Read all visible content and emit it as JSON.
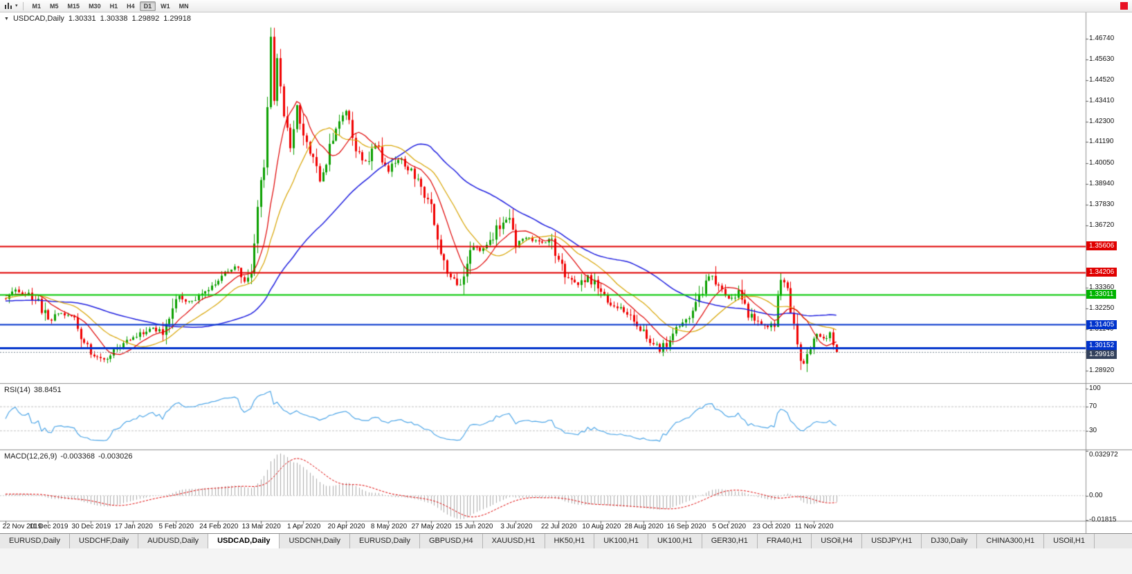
{
  "toolbar": {
    "timeframes": [
      {
        "label": "M1",
        "active": false
      },
      {
        "label": "M5",
        "active": false
      },
      {
        "label": "M15",
        "active": false
      },
      {
        "label": "M30",
        "active": false
      },
      {
        "label": "H1",
        "active": false
      },
      {
        "label": "H4",
        "active": false
      },
      {
        "label": "D1",
        "active": true
      },
      {
        "label": "W1",
        "active": false
      },
      {
        "label": "MN",
        "active": false
      }
    ],
    "status_color": "#e81123"
  },
  "chart": {
    "title": {
      "symbol": "USDCAD,Daily",
      "open": "1.30331",
      "high": "1.30338",
      "low": "1.29892",
      "close": "1.29918"
    },
    "price_axis": {
      "ticks": [
        {
          "label": "1.46740",
          "value": 1.4674
        },
        {
          "label": "1.45630",
          "value": 1.4563
        },
        {
          "label": "1.44520",
          "value": 1.4452
        },
        {
          "label": "1.43410",
          "value": 1.4341
        },
        {
          "label": "1.42300",
          "value": 1.423
        },
        {
          "label": "1.41190",
          "value": 1.4119
        },
        {
          "label": "1.40050",
          "value": 1.4005
        },
        {
          "label": "1.38940",
          "value": 1.3894
        },
        {
          "label": "1.37830",
          "value": 1.3783
        },
        {
          "label": "1.36720",
          "value": 1.3672
        },
        {
          "label": "1.33360",
          "value": 1.3336
        },
        {
          "label": "1.32250",
          "value": 1.3225
        },
        {
          "label": "1.31140",
          "value": 1.3114
        },
        {
          "label": "1.28920",
          "value": 1.2892
        }
      ],
      "badges": [
        {
          "label": "1.35606",
          "value": 1.35606,
          "color": "#e00000"
        },
        {
          "label": "1.34206",
          "value": 1.34206,
          "color": "#e00000"
        },
        {
          "label": "1.33011",
          "value": 1.33011,
          "color": "#00b400"
        },
        {
          "label": "1.31405",
          "value": 1.31405,
          "color": "#0033cc"
        },
        {
          "label": "1.30152",
          "value": 1.30152,
          "color": "#0033cc"
        },
        {
          "label": "1.29918",
          "value": 1.29918,
          "color": "#33415c"
        }
      ]
    },
    "hlines": [
      {
        "value": 1.35606,
        "color": "#e00000",
        "width": 2
      },
      {
        "value": 1.34206,
        "color": "#e00000",
        "width": 2
      },
      {
        "value": 1.33011,
        "color": "#00c800",
        "width": 2
      },
      {
        "value": 1.31405,
        "color": "#0033cc",
        "width": 2
      },
      {
        "value": 1.30152,
        "color": "#0033cc",
        "width": 3
      },
      {
        "value": 1.29918,
        "color": "#7a8896",
        "width": 1,
        "dash": [
          2,
          2
        ]
      }
    ],
    "date_axis": {
      "bar_step": 13,
      "labels": [
        "22 Nov 2019",
        "11 Dec 2019",
        "30 Dec 2019",
        "17 Jan 2020",
        "5 Feb 2020",
        "24 Feb 2020",
        "13 Mar 2020",
        "1 Apr 2020",
        "20 Apr 2020",
        "8 May 2020",
        "27 May 2020",
        "15 Jun 2020",
        "3 Jul 2020",
        "22 Jul 2020",
        "10 Aug 2020",
        "28 Aug 2020",
        "16 Sep 2020",
        "5 Oct 2020",
        "23 Oct 2020",
        "11 Nov 2020"
      ]
    }
  },
  "rsi": {
    "name": "RSI(14)",
    "value": "38.8451",
    "line_color": "#4da6e8",
    "levels": [
      {
        "label": "100",
        "value": 100
      },
      {
        "label": "70",
        "value": 70
      },
      {
        "label": "30",
        "value": 30
      }
    ]
  },
  "macd": {
    "name": "MACD(12,26,9)",
    "value_main": "-0.003368",
    "value_signal": "-0.003026",
    "histogram_color": "#aaaaaa",
    "signal_color": "#e00000",
    "axis": [
      {
        "label": "0.032972",
        "value": 0.032972
      },
      {
        "label": "0.00",
        "value": 0
      },
      {
        "label": "-0.01815",
        "value": -0.01815
      }
    ]
  },
  "tabs": [
    {
      "label": "EURUSD,Daily",
      "active": false
    },
    {
      "label": "USDCHF,Daily",
      "active": false
    },
    {
      "label": "AUDUSD,Daily",
      "active": false
    },
    {
      "label": "USDCAD,Daily",
      "active": true
    },
    {
      "label": "USDCNH,Daily",
      "active": false
    },
    {
      "label": "EURUSD,Daily",
      "active": false
    },
    {
      "label": "GBPUSD,H4",
      "active": false
    },
    {
      "label": "XAUUSD,H1",
      "active": false
    },
    {
      "label": "HK50,H1",
      "active": false
    },
    {
      "label": "UK100,H1",
      "active": false
    },
    {
      "label": "UK100,H1",
      "active": false
    },
    {
      "label": "GER30,H1",
      "active": false
    },
    {
      "label": "FRA40,H1",
      "active": false
    },
    {
      "label": "USOil,H4",
      "active": false
    },
    {
      "label": "USDJPY,H1",
      "active": false
    },
    {
      "label": "DJ30,Daily",
      "active": false
    },
    {
      "label": "CHINA300,H1",
      "active": false
    },
    {
      "label": "USOil,H1",
      "active": false
    }
  ],
  "chart_data": {
    "type": "candlestick",
    "symbol": "USDCAD",
    "timeframe": "Daily",
    "last_ohlc": {
      "open": 1.30331,
      "high": 1.30338,
      "low": 1.29892,
      "close": 1.29918
    },
    "current_price": 1.29918,
    "bars_visible": 255,
    "y_range": [
      1.2829,
      1.4815
    ],
    "horizontal_levels": [
      1.35606,
      1.34206,
      1.33011,
      1.31405,
      1.30152
    ],
    "candle_up_color": "#0ca000",
    "candle_down_color": "#f00000",
    "moving_averages": [
      {
        "speed": "fast",
        "color": "#e00000"
      },
      {
        "speed": "medium",
        "color": "#d8a400"
      },
      {
        "speed": "slow",
        "color": "#2020e0"
      }
    ],
    "indicators": [
      {
        "name": "RSI",
        "length": 14,
        "current": 38.8451,
        "levels": [
          30,
          70
        ]
      },
      {
        "name": "MACD",
        "fast": 12,
        "slow": 26,
        "signal": 9,
        "current_main": -0.003368,
        "current_signal": -0.003026,
        "axis_max": 0.032972,
        "axis_min": -0.01815
      }
    ],
    "x_axis_dates": [
      "22 Nov 2019",
      "11 Dec 2019",
      "30 Dec 2019",
      "17 Jan 2020",
      "5 Feb 2020",
      "24 Feb 2020",
      "13 Mar 2020",
      "1 Apr 2020",
      "20 Apr 2020",
      "8 May 2020",
      "27 May 2020",
      "15 Jun 2020",
      "3 Jul 2020",
      "22 Jul 2020",
      "10 Aug 2020",
      "28 Aug 2020",
      "16 Sep 2020",
      "5 Oct 2020",
      "23 Oct 2020",
      "11 Nov 2020"
    ],
    "price_path": [
      [
        -60,
        1.3235
      ],
      [
        -45,
        1.329
      ],
      [
        -30,
        1.3225
      ],
      [
        -15,
        1.327
      ],
      [
        -5,
        1.3305
      ],
      [
        0,
        1.3285
      ],
      [
        3,
        1.332
      ],
      [
        7,
        1.33
      ],
      [
        10,
        1.3255
      ],
      [
        13,
        1.3165
      ],
      [
        17,
        1.32
      ],
      [
        21,
        1.3165
      ],
      [
        26,
        1.2985
      ],
      [
        30,
        1.2958
      ],
      [
        34,
        1.301
      ],
      [
        39,
        1.3065
      ],
      [
        44,
        1.312
      ],
      [
        48,
        1.3105
      ],
      [
        52,
        1.329
      ],
      [
        56,
        1.326
      ],
      [
        60,
        1.33
      ],
      [
        64,
        1.336
      ],
      [
        68,
        1.343
      ],
      [
        70,
        1.3445
      ],
      [
        73,
        1.3365
      ],
      [
        75,
        1.342
      ],
      [
        76,
        1.36
      ],
      [
        78,
        1.39
      ],
      [
        79,
        1.4
      ],
      [
        80,
        1.428
      ],
      [
        81,
        1.466
      ],
      [
        82,
        1.435
      ],
      [
        83,
        1.456
      ],
      [
        85,
        1.428
      ],
      [
        87,
        1.409
      ],
      [
        89,
        1.433
      ],
      [
        91,
        1.4135
      ],
      [
        94,
        1.403
      ],
      [
        96,
        1.39
      ],
      [
        99,
        1.408
      ],
      [
        102,
        1.424
      ],
      [
        104,
        1.4265
      ],
      [
        107,
        1.409
      ],
      [
        110,
        1.401
      ],
      [
        113,
        1.411
      ],
      [
        117,
        1.396
      ],
      [
        120,
        1.403
      ],
      [
        123,
        1.398
      ],
      [
        126,
        1.39
      ],
      [
        130,
        1.377
      ],
      [
        133,
        1.35
      ],
      [
        136,
        1.3395
      ],
      [
        139,
        1.334
      ],
      [
        141,
        1.347
      ],
      [
        143,
        1.356
      ],
      [
        146,
        1.354
      ],
      [
        149,
        1.362
      ],
      [
        152,
        1.37
      ],
      [
        154,
        1.3715
      ],
      [
        156,
        1.358
      ],
      [
        160,
        1.3605
      ],
      [
        164,
        1.3575
      ],
      [
        166,
        1.3615
      ],
      [
        169,
        1.3475
      ],
      [
        172,
        1.3385
      ],
      [
        175,
        1.3345
      ],
      [
        178,
        1.3405
      ],
      [
        182,
        1.3305
      ],
      [
        185,
        1.3255
      ],
      [
        188,
        1.323
      ],
      [
        191,
        1.3185
      ],
      [
        195,
        1.3095
      ],
      [
        198,
        1.304
      ],
      [
        200,
        1.2998
      ],
      [
        203,
        1.306
      ],
      [
        206,
        1.313
      ],
      [
        208,
        1.317
      ],
      [
        211,
        1.323
      ],
      [
        214,
        1.3385
      ],
      [
        216,
        1.34
      ],
      [
        218,
        1.333
      ],
      [
        221,
        1.3275
      ],
      [
        224,
        1.331
      ],
      [
        227,
        1.32
      ],
      [
        230,
        1.3145
      ],
      [
        233,
        1.3125
      ],
      [
        235,
        1.315
      ],
      [
        237,
        1.339
      ],
      [
        239,
        1.333
      ],
      [
        241,
        1.312
      ],
      [
        243,
        1.296
      ],
      [
        244,
        1.293
      ],
      [
        246,
        1.304
      ],
      [
        248,
        1.308
      ],
      [
        250,
        1.306
      ],
      [
        252,
        1.309
      ],
      [
        254,
        1.29918
      ]
    ]
  }
}
